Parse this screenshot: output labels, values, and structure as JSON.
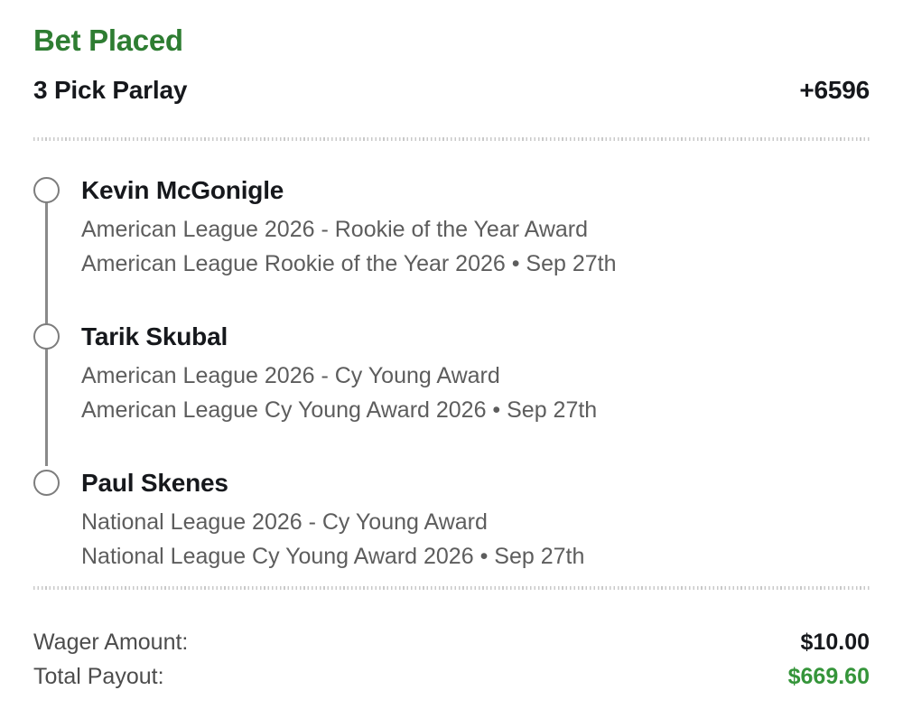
{
  "colors": {
    "accent_green": "#2e7d32",
    "payout_green": "#35953a",
    "heading_ink": "#16181c",
    "secondary_text": "#5d5d5d",
    "timeline_gray": "#8a8a8a"
  },
  "header": {
    "title": "Bet Placed",
    "bet_type": "3 Pick Parlay",
    "odds": "+6596"
  },
  "picks": [
    {
      "name": "Kevin McGonigle",
      "market": "American League 2026 - Rookie of the Year Award",
      "event": "American League Rookie of the Year 2026 • Sep 27th"
    },
    {
      "name": "Tarik Skubal",
      "market": "American League 2026 - Cy Young Award",
      "event": "American League Cy Young Award 2026 • Sep 27th"
    },
    {
      "name": "Paul Skenes",
      "market": "National League 2026 - Cy Young Award",
      "event": "National League Cy Young Award 2026 • Sep 27th"
    }
  ],
  "summary": {
    "wager_label": "Wager Amount:",
    "wager_value": "$10.00",
    "payout_label": "Total Payout:",
    "payout_value": "$669.60"
  }
}
